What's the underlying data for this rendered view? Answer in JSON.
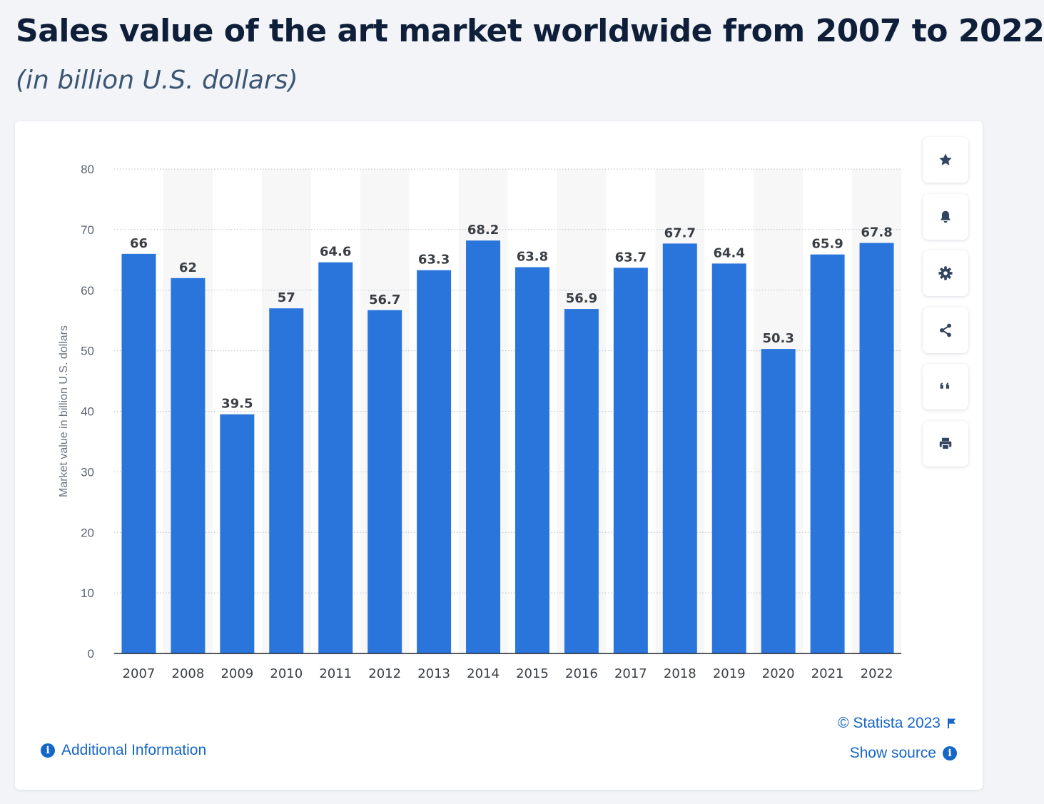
{
  "header": {
    "title": "Sales value of the art market worldwide from 2007 to 2022",
    "subtitle": "(in billion U.S. dollars)"
  },
  "toolbar": {
    "icons": [
      "star-icon",
      "bell-icon",
      "gear-icon",
      "share-icon",
      "quote-icon",
      "print-icon"
    ]
  },
  "footer": {
    "additional_info": "Additional Information",
    "copyright": "© Statista 2023",
    "show_source": "Show source",
    "info_glyph": "i"
  },
  "colors": {
    "bar": "#2a75dc",
    "link": "#1666c8",
    "title": "#0f1f3a",
    "subtitle": "#3b5574",
    "band": "#f7f7f7"
  },
  "chart_data": {
    "type": "bar",
    "title": "Sales value of the art market worldwide from 2007 to 2022",
    "subtitle": "(in billion U.S. dollars)",
    "xlabel": "",
    "ylabel": "Market value in billion U.S. dollars",
    "ylim": [
      0,
      80
    ],
    "yticks": [
      0,
      10,
      20,
      30,
      40,
      50,
      60,
      70,
      80
    ],
    "grid": true,
    "categories": [
      "2007",
      "2008",
      "2009",
      "2010",
      "2011",
      "2012",
      "2013",
      "2014",
      "2015",
      "2016",
      "2017",
      "2018",
      "2019",
      "2020",
      "2021",
      "2022"
    ],
    "values": [
      66,
      62,
      39.5,
      57,
      64.6,
      56.7,
      63.3,
      68.2,
      63.8,
      56.9,
      63.7,
      67.7,
      64.4,
      50.3,
      65.9,
      67.8
    ],
    "value_labels": [
      "66",
      "62",
      "39.5",
      "57",
      "64.6",
      "56.7",
      "63.3",
      "68.2",
      "63.8",
      "56.9",
      "63.7",
      "67.7",
      "64.4",
      "50.3",
      "65.9",
      "67.8"
    ]
  }
}
